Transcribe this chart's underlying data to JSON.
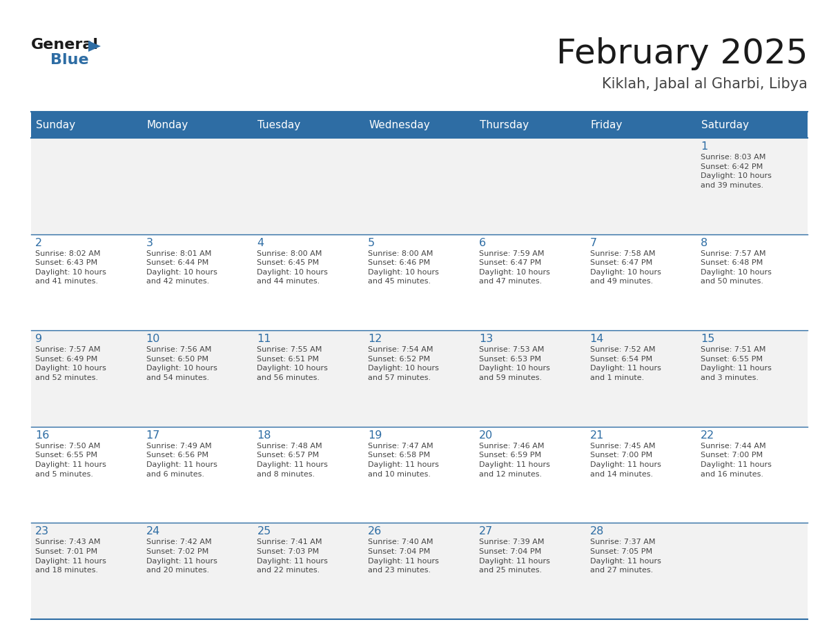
{
  "title": "February 2025",
  "subtitle": "Kiklah, Jabal al Gharbi, Libya",
  "header_bg_color": "#2E6DA4",
  "header_text_color": "#FFFFFF",
  "cell_bg_odd": "#F2F2F2",
  "cell_bg_even": "#FFFFFF",
  "day_number_color": "#2E6DA4",
  "text_color": "#444444",
  "border_color": "#2E6DA4",
  "line_color": "#AAAAAA",
  "days_of_week": [
    "Sunday",
    "Monday",
    "Tuesday",
    "Wednesday",
    "Thursday",
    "Friday",
    "Saturday"
  ],
  "weeks": [
    [
      {
        "day": 0,
        "info": ""
      },
      {
        "day": 0,
        "info": ""
      },
      {
        "day": 0,
        "info": ""
      },
      {
        "day": 0,
        "info": ""
      },
      {
        "day": 0,
        "info": ""
      },
      {
        "day": 0,
        "info": ""
      },
      {
        "day": 1,
        "info": "Sunrise: 8:03 AM\nSunset: 6:42 PM\nDaylight: 10 hours\nand 39 minutes."
      }
    ],
    [
      {
        "day": 2,
        "info": "Sunrise: 8:02 AM\nSunset: 6:43 PM\nDaylight: 10 hours\nand 41 minutes."
      },
      {
        "day": 3,
        "info": "Sunrise: 8:01 AM\nSunset: 6:44 PM\nDaylight: 10 hours\nand 42 minutes."
      },
      {
        "day": 4,
        "info": "Sunrise: 8:00 AM\nSunset: 6:45 PM\nDaylight: 10 hours\nand 44 minutes."
      },
      {
        "day": 5,
        "info": "Sunrise: 8:00 AM\nSunset: 6:46 PM\nDaylight: 10 hours\nand 45 minutes."
      },
      {
        "day": 6,
        "info": "Sunrise: 7:59 AM\nSunset: 6:47 PM\nDaylight: 10 hours\nand 47 minutes."
      },
      {
        "day": 7,
        "info": "Sunrise: 7:58 AM\nSunset: 6:47 PM\nDaylight: 10 hours\nand 49 minutes."
      },
      {
        "day": 8,
        "info": "Sunrise: 7:57 AM\nSunset: 6:48 PM\nDaylight: 10 hours\nand 50 minutes."
      }
    ],
    [
      {
        "day": 9,
        "info": "Sunrise: 7:57 AM\nSunset: 6:49 PM\nDaylight: 10 hours\nand 52 minutes."
      },
      {
        "day": 10,
        "info": "Sunrise: 7:56 AM\nSunset: 6:50 PM\nDaylight: 10 hours\nand 54 minutes."
      },
      {
        "day": 11,
        "info": "Sunrise: 7:55 AM\nSunset: 6:51 PM\nDaylight: 10 hours\nand 56 minutes."
      },
      {
        "day": 12,
        "info": "Sunrise: 7:54 AM\nSunset: 6:52 PM\nDaylight: 10 hours\nand 57 minutes."
      },
      {
        "day": 13,
        "info": "Sunrise: 7:53 AM\nSunset: 6:53 PM\nDaylight: 10 hours\nand 59 minutes."
      },
      {
        "day": 14,
        "info": "Sunrise: 7:52 AM\nSunset: 6:54 PM\nDaylight: 11 hours\nand 1 minute."
      },
      {
        "day": 15,
        "info": "Sunrise: 7:51 AM\nSunset: 6:55 PM\nDaylight: 11 hours\nand 3 minutes."
      }
    ],
    [
      {
        "day": 16,
        "info": "Sunrise: 7:50 AM\nSunset: 6:55 PM\nDaylight: 11 hours\nand 5 minutes."
      },
      {
        "day": 17,
        "info": "Sunrise: 7:49 AM\nSunset: 6:56 PM\nDaylight: 11 hours\nand 6 minutes."
      },
      {
        "day": 18,
        "info": "Sunrise: 7:48 AM\nSunset: 6:57 PM\nDaylight: 11 hours\nand 8 minutes."
      },
      {
        "day": 19,
        "info": "Sunrise: 7:47 AM\nSunset: 6:58 PM\nDaylight: 11 hours\nand 10 minutes."
      },
      {
        "day": 20,
        "info": "Sunrise: 7:46 AM\nSunset: 6:59 PM\nDaylight: 11 hours\nand 12 minutes."
      },
      {
        "day": 21,
        "info": "Sunrise: 7:45 AM\nSunset: 7:00 PM\nDaylight: 11 hours\nand 14 minutes."
      },
      {
        "day": 22,
        "info": "Sunrise: 7:44 AM\nSunset: 7:00 PM\nDaylight: 11 hours\nand 16 minutes."
      }
    ],
    [
      {
        "day": 23,
        "info": "Sunrise: 7:43 AM\nSunset: 7:01 PM\nDaylight: 11 hours\nand 18 minutes."
      },
      {
        "day": 24,
        "info": "Sunrise: 7:42 AM\nSunset: 7:02 PM\nDaylight: 11 hours\nand 20 minutes."
      },
      {
        "day": 25,
        "info": "Sunrise: 7:41 AM\nSunset: 7:03 PM\nDaylight: 11 hours\nand 22 minutes."
      },
      {
        "day": 26,
        "info": "Sunrise: 7:40 AM\nSunset: 7:04 PM\nDaylight: 11 hours\nand 23 minutes."
      },
      {
        "day": 27,
        "info": "Sunrise: 7:39 AM\nSunset: 7:04 PM\nDaylight: 11 hours\nand 25 minutes."
      },
      {
        "day": 28,
        "info": "Sunrise: 7:37 AM\nSunset: 7:05 PM\nDaylight: 11 hours\nand 27 minutes."
      },
      {
        "day": 0,
        "info": ""
      }
    ]
  ]
}
